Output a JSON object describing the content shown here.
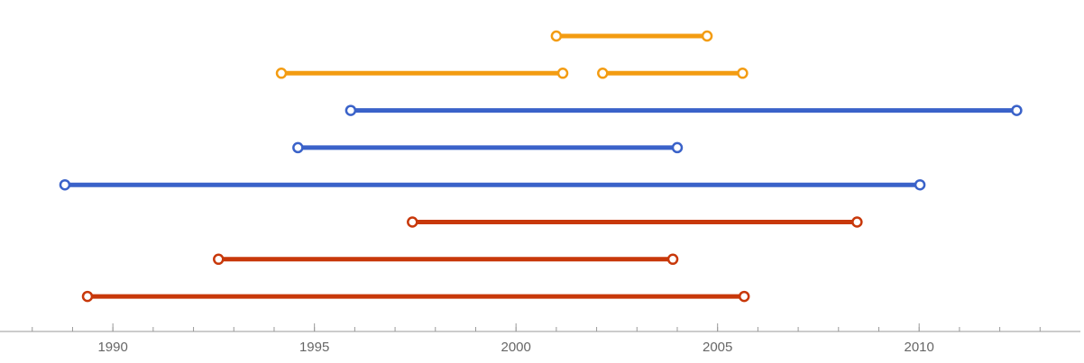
{
  "chart_data": {
    "type": "timeline",
    "xlim": [
      1987.2,
      2014.0
    ],
    "xticks": [
      1990,
      1995,
      2000,
      2005,
      2010
    ],
    "minor_xticks": [
      1988,
      1989,
      1990,
      1991,
      1992,
      1993,
      1994,
      1995,
      1996,
      1997,
      1998,
      1999,
      2000,
      2001,
      2002,
      2003,
      2004,
      2005,
      2006,
      2007,
      2008,
      2009,
      2010,
      2011,
      2012,
      2013
    ],
    "rows": [
      {
        "color": "#f39c12",
        "intervals": [
          {
            "start": 2001.0,
            "end": 2004.74
          }
        ]
      },
      {
        "color": "#f39c12",
        "intervals": [
          {
            "start": 1994.18,
            "end": 2001.16
          },
          {
            "start": 2002.15,
            "end": 2005.62
          }
        ]
      },
      {
        "color": "#3a62c9",
        "intervals": [
          {
            "start": 1995.9,
            "end": 2012.42
          }
        ]
      },
      {
        "color": "#3a62c9",
        "intervals": [
          {
            "start": 1994.59,
            "end": 2004.0
          }
        ]
      },
      {
        "color": "#3a62c9",
        "intervals": [
          {
            "start": 1988.81,
            "end": 2010.02
          }
        ]
      },
      {
        "color": "#c8380a",
        "intervals": [
          {
            "start": 1997.43,
            "end": 2008.46
          }
        ]
      },
      {
        "color": "#c8380a",
        "intervals": [
          {
            "start": 1992.62,
            "end": 2003.89
          }
        ]
      },
      {
        "color": "#c8380a",
        "intervals": [
          {
            "start": 1989.37,
            "end": 2005.66
          }
        ]
      }
    ]
  }
}
